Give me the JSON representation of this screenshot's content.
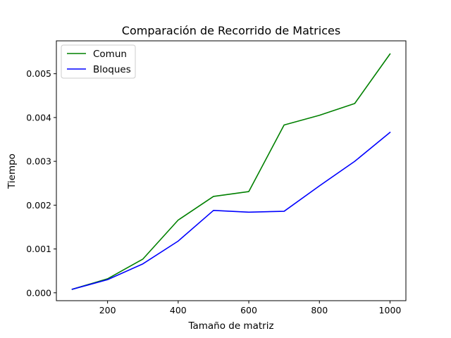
{
  "chart_data": {
    "type": "line",
    "title": "Comparación de Recorrido de Matrices",
    "xlabel": "Tamaño de matriz",
    "ylabel": "Tiempo",
    "xlim": [
      55,
      1045
    ],
    "ylim": [
      -0.00018,
      0.00575
    ],
    "xticks": [
      200,
      400,
      600,
      800,
      1000
    ],
    "xtick_labels": [
      "200",
      "400",
      "600",
      "800",
      "1000"
    ],
    "yticks": [
      0.0,
      0.001,
      0.002,
      0.003,
      0.004,
      0.005
    ],
    "ytick_labels": [
      "0.000",
      "0.001",
      "0.002",
      "0.003",
      "0.004",
      "0.005"
    ],
    "x": [
      100,
      200,
      300,
      400,
      500,
      600,
      700,
      800,
      900,
      1000
    ],
    "series": [
      {
        "name": "Comun",
        "color": "#008000",
        "values": [
          8e-05,
          0.00032,
          0.00077,
          0.00166,
          0.0022,
          0.00231,
          0.00383,
          0.00405,
          0.00432,
          0.00545
        ]
      },
      {
        "name": "Bloques",
        "color": "#0000ff",
        "values": [
          8e-05,
          0.0003,
          0.00066,
          0.00118,
          0.00188,
          0.00184,
          0.00186,
          0.00244,
          0.003,
          0.00366
        ]
      }
    ],
    "grid": false,
    "legend_position": "top-left"
  }
}
